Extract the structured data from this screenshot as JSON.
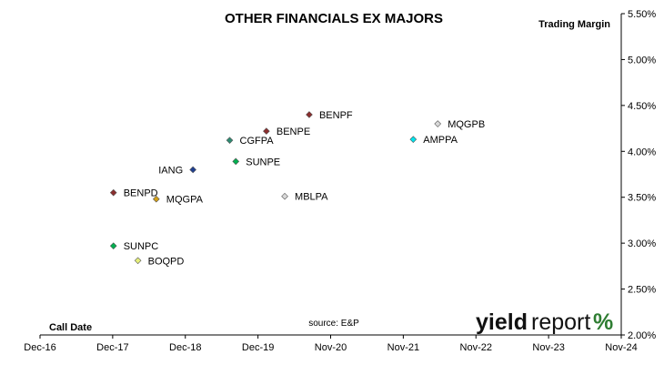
{
  "chart_data": {
    "type": "scatter",
    "title": "OTHER FINANCIALS EX MAJORS",
    "ylabel": "Trading Margin",
    "xlabel": "Call Date",
    "source": "source: E&P",
    "logo": {
      "part1": "yield",
      "part2": "report",
      "symbol": "%"
    },
    "x_ticks": [
      "Dec-16",
      "Dec-17",
      "Dec-18",
      "Dec-19",
      "Nov-20",
      "Nov-21",
      "Nov-22",
      "Nov-23",
      "Nov-24"
    ],
    "y_ticks": [
      "2.00%",
      "2.50%",
      "3.00%",
      "3.50%",
      "4.00%",
      "4.50%",
      "5.00%",
      "5.50%"
    ],
    "ylim": [
      2.0,
      5.5
    ],
    "xlim": [
      "2016-12",
      "2024-11"
    ],
    "grid": false,
    "points": [
      {
        "name": "BENPF",
        "x": "2020-08",
        "y": 4.4,
        "color": "#8b2e2e"
      },
      {
        "name": "MQGPB",
        "x": "2022-05",
        "y": 4.3,
        "color": "#d9d9d9"
      },
      {
        "name": "BENPE",
        "x": "2020-01",
        "y": 4.22,
        "color": "#8b2e2e"
      },
      {
        "name": "CGFPA",
        "x": "2019-07",
        "y": 4.12,
        "color": "#2e8b72"
      },
      {
        "name": "AMPPA",
        "x": "2022-01",
        "y": 4.13,
        "color": "#00e5ee"
      },
      {
        "name": "SUNPE",
        "x": "2019-08",
        "y": 3.89,
        "color": "#00b050"
      },
      {
        "name": "IANG",
        "x": "2019-01",
        "y": 3.8,
        "color": "#1f3f8f"
      },
      {
        "name": "BENPD",
        "x": "2017-12",
        "y": 3.55,
        "color": "#8b2e2e"
      },
      {
        "name": "MQGPA",
        "x": "2018-07",
        "y": 3.48,
        "color": "#d4a017"
      },
      {
        "name": "MBLPA",
        "x": "2020-04",
        "y": 3.51,
        "color": "#d9d9d9"
      },
      {
        "name": "SUNPC",
        "x": "2017-12",
        "y": 2.97,
        "color": "#00b050"
      },
      {
        "name": "BOQPD",
        "x": "2018-04",
        "y": 2.81,
        "color": "#e6f07a"
      }
    ]
  }
}
